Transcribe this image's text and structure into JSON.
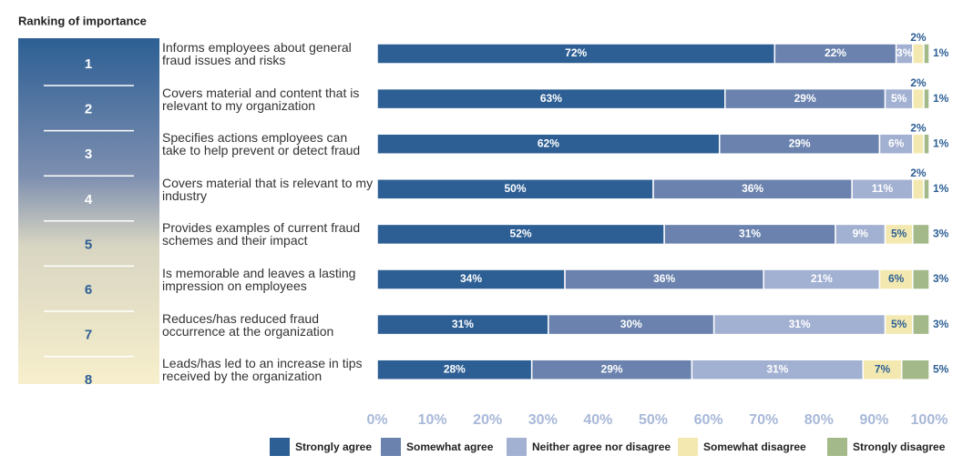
{
  "chart_data": {
    "type": "stacked-bar-horizontal",
    "title": "Ranking of importance",
    "ranks": [
      1,
      2,
      3,
      4,
      5,
      6,
      7,
      8
    ],
    "categories": [
      "Informs employees about general fraud issues and risks",
      "Covers material and content that is relevant to my organization",
      "Specifies actions employees can take to help prevent or detect fraud",
      "Covers material that is relevant to my industry",
      "Provides examples of current fraud schemes and their impact",
      "Is memorable and leaves a lasting impression on employees",
      "Reduces/has reduced fraud occurrence at the organization",
      "Leads/has led to an increase in tips received by the organization"
    ],
    "series": [
      {
        "name": "Strongly agree",
        "color": "#2d5f94",
        "values": [
          72,
          63,
          62,
          50,
          52,
          34,
          31,
          28
        ],
        "value_labels": [
          "72%",
          "63%",
          "62%",
          "50%",
          "52%",
          "34%",
          "31%",
          "28%"
        ]
      },
      {
        "name": "Somewhat agree",
        "color": "#6a82ad",
        "values": [
          22,
          29,
          29,
          36,
          31,
          36,
          30,
          29
        ],
        "value_labels": [
          "22%",
          "29%",
          "29%",
          "36%",
          "31%",
          "36%",
          "30%",
          "29%"
        ]
      },
      {
        "name": "Neither agree nor disagree",
        "color": "#a2b0d1",
        "values": [
          3,
          5,
          6,
          11,
          9,
          21,
          31,
          31
        ],
        "value_labels": [
          "3%",
          "5%",
          "6%",
          "11%",
          "9%",
          "21%",
          "31%",
          "31%"
        ]
      },
      {
        "name": "Somewhat disagree",
        "color": "#f3e9b0",
        "values": [
          2,
          2,
          2,
          2,
          5,
          6,
          5,
          7
        ],
        "value_labels": [
          "2%",
          "2%",
          "2%",
          "2%",
          "5%",
          "6%",
          "5%",
          "7%"
        ]
      },
      {
        "name": "Strongly disagree",
        "color": "#a3b98a",
        "values": [
          1,
          1,
          1,
          1,
          3,
          3,
          3,
          5
        ],
        "value_labels": [
          "1%",
          "1%",
          "1%",
          "1%",
          "3%",
          "3%",
          "3%",
          "5%"
        ]
      }
    ],
    "xlim": [
      0,
      100
    ],
    "xticks": [
      {
        "value": 0,
        "label": "0%"
      },
      {
        "value": 10,
        "label": "10%"
      },
      {
        "value": 20,
        "label": "20%"
      },
      {
        "value": 30,
        "label": "30%"
      },
      {
        "value": 40,
        "label": "40%"
      },
      {
        "value": 50,
        "label": "50%"
      },
      {
        "value": 60,
        "label": "60%"
      },
      {
        "value": 70,
        "label": "70%"
      },
      {
        "value": 80,
        "label": "80%"
      },
      {
        "value": 90,
        "label": "90%"
      },
      {
        "value": 100,
        "label": "100%"
      }
    ],
    "legend": "bottom"
  }
}
